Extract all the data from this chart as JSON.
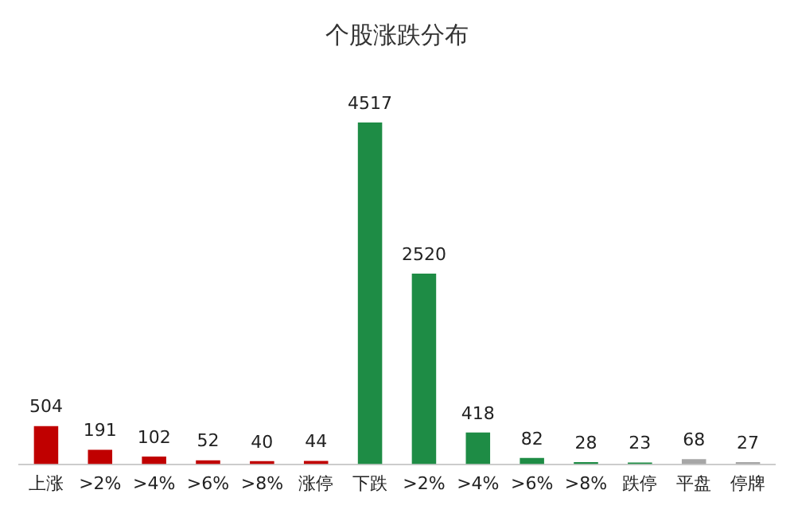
{
  "chart_data": {
    "type": "bar",
    "title": "个股涨跌分布",
    "categories": [
      "上涨",
      ">2%",
      ">4%",
      ">6%",
      ">8%",
      "涨停",
      "下跌",
      ">2%",
      ">4%",
      ">6%",
      ">8%",
      "跌停",
      "平盘",
      "停牌"
    ],
    "values": [
      504,
      191,
      102,
      52,
      40,
      44,
      4517,
      2520,
      418,
      82,
      28,
      23,
      68,
      27
    ],
    "colors": [
      "#c00000",
      "#c00000",
      "#c00000",
      "#c00000",
      "#c00000",
      "#c00000",
      "#1e8c45",
      "#1e8c45",
      "#1e8c45",
      "#1e8c45",
      "#1e8c45",
      "#1e8c45",
      "#a6a6a6",
      "#a6a6a6"
    ],
    "data_labels": true,
    "grid": false,
    "legend": false
  }
}
